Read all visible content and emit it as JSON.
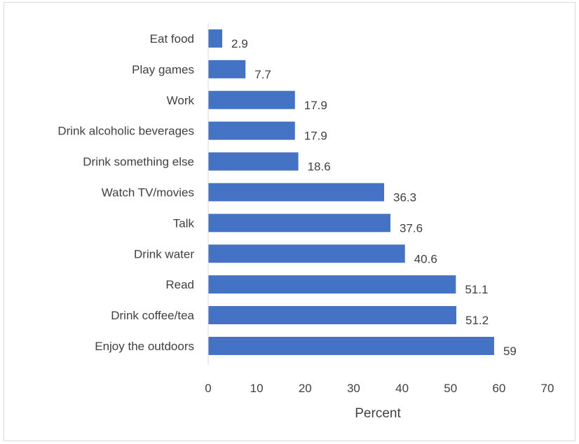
{
  "chart_data": {
    "type": "bar",
    "orientation": "horizontal",
    "categories": [
      "Eat food",
      "Play games",
      "Work",
      "Drink alcoholic beverages",
      "Drink something else",
      "Watch TV/movies",
      "Talk",
      "Drink water",
      "Read",
      "Drink coffee/tea",
      "Enjoy the outdoors"
    ],
    "values": [
      2.9,
      7.7,
      17.9,
      17.9,
      18.6,
      36.3,
      37.6,
      40.6,
      51.1,
      51.2,
      59
    ],
    "data_labels": [
      "2.9",
      "7.7",
      "17.9",
      "17.9",
      "18.6",
      "36.3",
      "37.6",
      "40.6",
      "51.1",
      "51.2",
      "59"
    ],
    "xlabel": "Percent",
    "xlim": [
      0,
      70
    ],
    "xticks": [
      "0",
      "10",
      "20",
      "30",
      "40",
      "50",
      "60",
      "70"
    ],
    "grid": false,
    "legend": "none",
    "bar_color": "#4472c4"
  }
}
